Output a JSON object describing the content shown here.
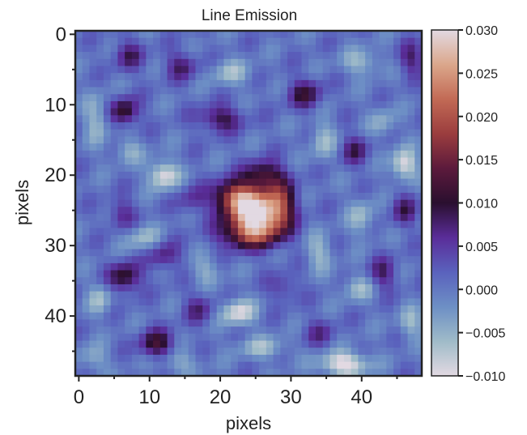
{
  "chart_data": {
    "type": "heatmap",
    "title": "Line Emission",
    "xlabel": "pixels",
    "ylabel": "pixels",
    "grid_size": [
      49,
      49
    ],
    "xlim": [
      -0.5,
      48.5
    ],
    "ylim": [
      48.5,
      -0.5
    ],
    "x_ticks": [
      "0",
      "10",
      "20",
      "30",
      "40"
    ],
    "y_ticks": [
      "0",
      "10",
      "20",
      "30",
      "40"
    ],
    "colorbar": {
      "range": [
        -0.01,
        0.03
      ],
      "ticks": [
        "0.030",
        "0.025",
        "0.020",
        "0.015",
        "0.010",
        "0.005",
        "0.000",
        "−0.005",
        "−0.010"
      ],
      "colormap": "twilight",
      "stops": [
        [
          "-0.010",
          "#e2d9e2"
        ],
        [
          "-0.006",
          "#9fbbc8"
        ],
        [
          "-0.002",
          "#6d8fc5"
        ],
        [
          "0.002",
          "#5a62bd"
        ],
        [
          "0.006",
          "#5a2d99"
        ],
        [
          "0.010",
          "#2a0f2f"
        ],
        [
          "0.014",
          "#5c1a3c"
        ],
        [
          "0.018",
          "#9b3d3e"
        ],
        [
          "0.022",
          "#c26a55"
        ],
        [
          "0.026",
          "#dba78b"
        ],
        [
          "0.030",
          "#e2d9e2"
        ]
      ]
    },
    "background": 0.0005,
    "blobs": [
      {
        "x": 25.0,
        "y": 25.5,
        "amp": 0.03,
        "sx": 2.6,
        "sy": 2.3,
        "note": "central emission peak"
      },
      {
        "x": 22.0,
        "y": 23.0,
        "amp": 0.016,
        "sx": 2.0,
        "sy": 1.6
      },
      {
        "x": 28.5,
        "y": 24.0,
        "amp": 0.012,
        "sx": 1.5,
        "sy": 2.6
      },
      {
        "x": 24.0,
        "y": 28.5,
        "amp": 0.011,
        "sx": 3.0,
        "sy": 1.4
      },
      {
        "x": 26.0,
        "y": 20.0,
        "amp": 0.011,
        "sx": 1.8,
        "sy": 1.4
      },
      {
        "x": 6.5,
        "y": 11.0,
        "amp": 0.011,
        "sx": 1.4,
        "sy": 1.4
      },
      {
        "x": 6.5,
        "y": 34.5,
        "amp": 0.011,
        "sx": 1.6,
        "sy": 1.5
      },
      {
        "x": 11.0,
        "y": 44.0,
        "amp": 0.011,
        "sx": 1.7,
        "sy": 1.4
      },
      {
        "x": 20.0,
        "y": 12.0,
        "amp": 0.009,
        "sx": 2.2,
        "sy": 1.3
      },
      {
        "x": 32.0,
        "y": 8.5,
        "amp": 0.009,
        "sx": 1.7,
        "sy": 1.5
      },
      {
        "x": 14.5,
        "y": 4.5,
        "amp": 0.007,
        "sx": 1.6,
        "sy": 1.4
      },
      {
        "x": 7.0,
        "y": 3.0,
        "amp": 0.007,
        "sx": 1.5,
        "sy": 1.5
      },
      {
        "x": 47.0,
        "y": 3.5,
        "amp": 0.007,
        "sx": 1.3,
        "sy": 1.6
      },
      {
        "x": 43.0,
        "y": 34.0,
        "amp": 0.007,
        "sx": 1.4,
        "sy": 1.6
      },
      {
        "x": 39.0,
        "y": 16.5,
        "amp": 0.007,
        "sx": 1.4,
        "sy": 1.5
      },
      {
        "x": 46.0,
        "y": 25.0,
        "amp": 0.007,
        "sx": 1.3,
        "sy": 1.6
      },
      {
        "x": 12.0,
        "y": 31.5,
        "amp": 0.007,
        "sx": 1.6,
        "sy": 1.4
      },
      {
        "x": 17.0,
        "y": 39.0,
        "amp": 0.006,
        "sx": 1.5,
        "sy": 1.5
      },
      {
        "x": 6.0,
        "y": 25.5,
        "amp": 0.006,
        "sx": 1.4,
        "sy": 1.5
      },
      {
        "x": 16.0,
        "y": 23.5,
        "amp": 0.005,
        "sx": 1.5,
        "sy": 1.5
      },
      {
        "x": 34.0,
        "y": 42.5,
        "amp": 0.005,
        "sx": 1.6,
        "sy": 1.4
      },
      {
        "x": 29.0,
        "y": 36.0,
        "amp": 0.005,
        "sx": 1.5,
        "sy": 1.4
      },
      {
        "x": 12.0,
        "y": 20.0,
        "amp": -0.011,
        "sx": 1.5,
        "sy": 1.4
      },
      {
        "x": 46.0,
        "y": 18.5,
        "amp": -0.011,
        "sx": 1.3,
        "sy": 1.5
      },
      {
        "x": 22.5,
        "y": 39.5,
        "amp": -0.01,
        "sx": 1.7,
        "sy": 1.3
      },
      {
        "x": 37.5,
        "y": 46.8,
        "amp": -0.012,
        "sx": 2.4,
        "sy": 1.2
      },
      {
        "x": 2.5,
        "y": 12.0,
        "amp": -0.006,
        "sx": 1.2,
        "sy": 2.4
      },
      {
        "x": 21.5,
        "y": 5.5,
        "amp": -0.006,
        "sx": 2.0,
        "sy": 1.3
      },
      {
        "x": 40.0,
        "y": 4.0,
        "amp": -0.006,
        "sx": 2.0,
        "sy": 1.3
      },
      {
        "x": 43.0,
        "y": 12.5,
        "amp": -0.005,
        "sx": 1.3,
        "sy": 1.5
      },
      {
        "x": 34.5,
        "y": 15.0,
        "amp": -0.006,
        "sx": 1.3,
        "sy": 2.0
      },
      {
        "x": 7.0,
        "y": 16.5,
        "amp": -0.005,
        "sx": 1.5,
        "sy": 1.3
      },
      {
        "x": 9.0,
        "y": 29.0,
        "amp": -0.006,
        "sx": 1.8,
        "sy": 1.3
      },
      {
        "x": 3.0,
        "y": 37.5,
        "amp": -0.006,
        "sx": 1.2,
        "sy": 1.6
      },
      {
        "x": 18.0,
        "y": 33.5,
        "amp": -0.005,
        "sx": 1.5,
        "sy": 1.4
      },
      {
        "x": 34.0,
        "y": 31.0,
        "amp": -0.006,
        "sx": 1.3,
        "sy": 1.8
      },
      {
        "x": 40.0,
        "y": 26.0,
        "amp": -0.006,
        "sx": 1.3,
        "sy": 1.8
      },
      {
        "x": 39.5,
        "y": 36.0,
        "amp": -0.006,
        "sx": 1.6,
        "sy": 1.3
      },
      {
        "x": 47.0,
        "y": 41.0,
        "amp": -0.006,
        "sx": 1.3,
        "sy": 1.5
      },
      {
        "x": 26.0,
        "y": 44.5,
        "amp": -0.006,
        "sx": 2.5,
        "sy": 1.1
      },
      {
        "x": 14.0,
        "y": 46.5,
        "amp": -0.005,
        "sx": 2.0,
        "sy": 1.2
      },
      {
        "x": 2.0,
        "y": 46.0,
        "amp": -0.005,
        "sx": 1.5,
        "sy": 1.3
      }
    ]
  }
}
